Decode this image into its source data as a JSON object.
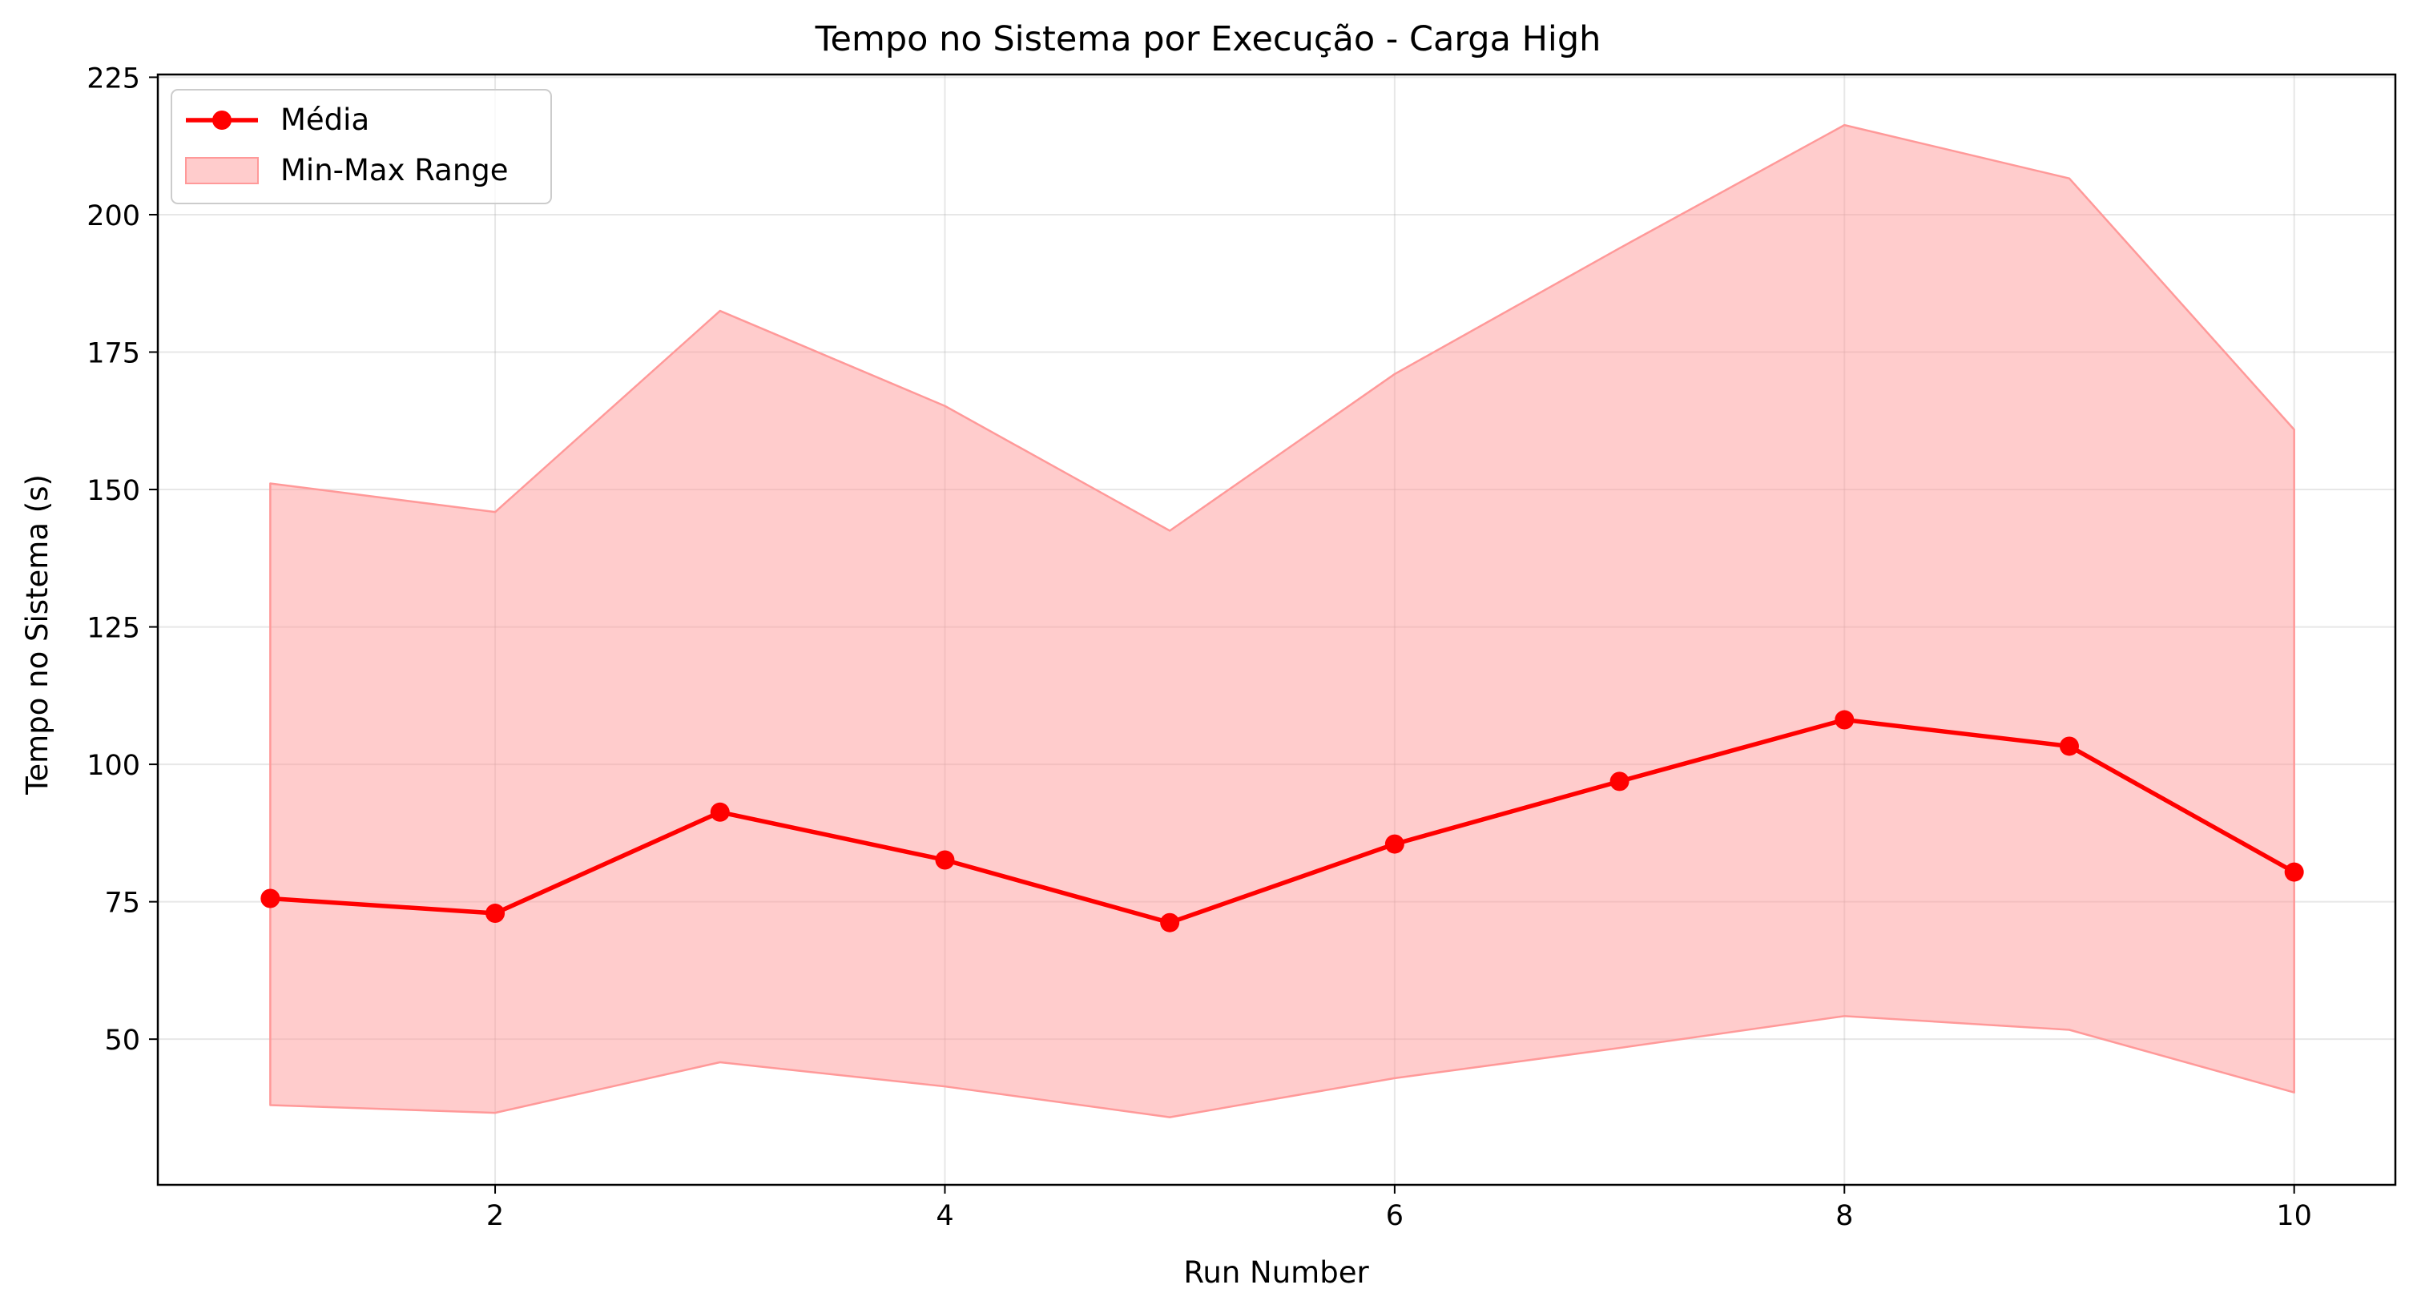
{
  "chart_data": {
    "type": "line",
    "title": "Tempo no Sistema por Execução - Carga High",
    "xlabel": "Run Number",
    "ylabel": "Tempo no Sistema (s)",
    "xlim": [
      0.5,
      10.45
    ],
    "ylim": [
      23.5,
      225.5
    ],
    "xticks": [
      2,
      4,
      6,
      8,
      10
    ],
    "yticks": [
      50,
      75,
      100,
      125,
      150,
      175,
      200,
      225
    ],
    "grid": true,
    "legend_position": "top-left",
    "x": [
      1,
      2,
      3,
      4,
      5,
      6,
      7,
      8,
      9,
      10
    ],
    "series": [
      {
        "name": "Média",
        "kind": "line",
        "color": "#ff0000",
        "marker": "circle",
        "values": [
          75.6,
          72.9,
          91.3,
          82.6,
          71.2,
          85.5,
          96.9,
          108.1,
          103.3,
          80.4
        ]
      },
      {
        "name": "Min-Max Range",
        "kind": "range",
        "color": "#ff9999",
        "min": [
          38.0,
          36.6,
          45.8,
          41.4,
          35.8,
          42.9,
          48.4,
          54.2,
          51.7,
          40.3
        ],
        "max": [
          151.1,
          145.9,
          182.5,
          165.2,
          142.5,
          171.0,
          193.9,
          216.3,
          206.6,
          160.9
        ]
      }
    ]
  }
}
